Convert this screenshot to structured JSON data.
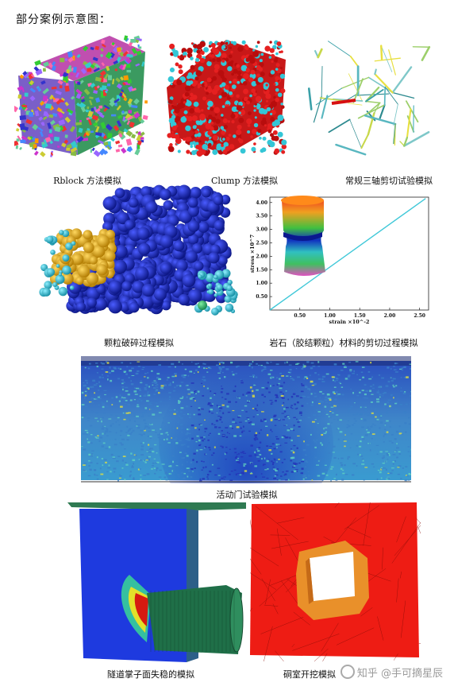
{
  "heading": "部分案例示意图：",
  "captions": {
    "rblock": "Rblock 方法模拟",
    "clump": "Clump 方法模拟",
    "triaxial": "常规三轴剪切试验模拟",
    "crushing": "颗粒破碎过程模拟",
    "rock": "岩石（胶结颗粒）材料的剪切过程模拟",
    "trapdoor": "活动门试验模拟",
    "tunnel": "隧道掌子面失稳的模拟",
    "cavern": "硐室开挖模拟"
  },
  "chart_data": {
    "type": "line",
    "xlabel": "strain ×10^-2",
    "ylabel": "stress ×10^7",
    "xticks": [
      "0.50",
      "1.00",
      "1.50",
      "2.00",
      "2.50"
    ],
    "yticks": [
      "0.50",
      "1.00",
      "1.50",
      "2.00",
      "2.50",
      "3.00",
      "3.50",
      "4.00"
    ],
    "xlim": [
      0,
      2.65
    ],
    "ylim": [
      0,
      4.2
    ],
    "x": [
      0,
      2.6
    ],
    "y": [
      0,
      4.15
    ]
  },
  "watermark": "知乎 @手可摘星辰",
  "colors": {
    "blue": "#1b2fd6",
    "red": "#e01010",
    "cyan": "#39c4d8",
    "gold": "#e8b820",
    "green": "#2e8b57"
  }
}
